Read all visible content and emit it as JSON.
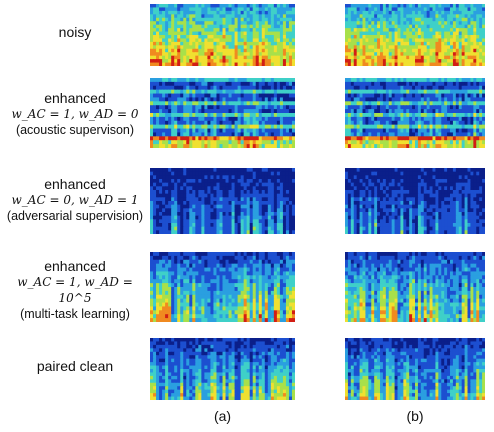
{
  "rows": [
    {
      "id": "noisy",
      "title": "noisy",
      "formula": "",
      "description": "",
      "profile": "noisy"
    },
    {
      "id": "acoustic",
      "title": "enhanced",
      "formula": "w_AC = 1, w_AD = 0",
      "description": "(acoustic supervison)",
      "profile": "banded"
    },
    {
      "id": "adversarial",
      "title": "enhanced",
      "formula": "w_AC = 0, w_AD = 1",
      "description": "(adversarial supervision)",
      "profile": "dark"
    },
    {
      "id": "multitask",
      "title": "enhanced",
      "formula": "w_AC = 1, w_AD = 10^5",
      "description": "(multi-task learning)",
      "profile": "rich"
    },
    {
      "id": "clean",
      "title": "paired clean",
      "formula": "",
      "description": "",
      "profile": "clean"
    }
  ],
  "columns": [
    {
      "id": "a",
      "label": "(a)"
    },
    {
      "id": "b",
      "label": "(b)"
    }
  ],
  "colors": {
    "colormap": [
      "#0b1f8a",
      "#1c4fd0",
      "#2a9fe0",
      "#3fd0c8",
      "#a8e04a",
      "#f0e030",
      "#f08a20",
      "#d21e14"
    ]
  }
}
